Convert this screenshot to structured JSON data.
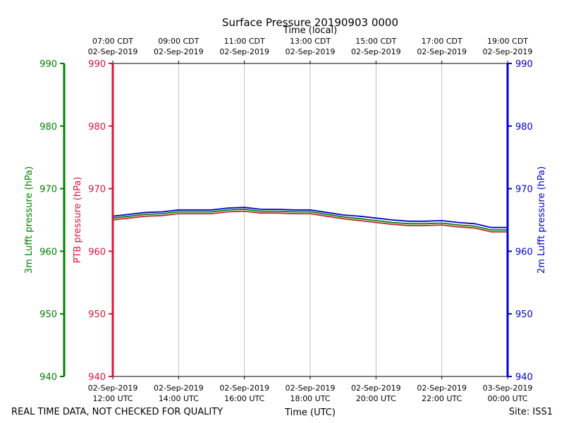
{
  "chart_data": {
    "type": "line",
    "title": "Surface Pressure 20190903 0000",
    "top_axis_title": "Time (local)",
    "xlabel": "Time (UTC)",
    "ylabel_left_outer": "3m Lufft pressure (hPa)",
    "ylabel_left_inner": "PTB pressure (hPa)",
    "ylabel_right": "2m Lufft pressure (hPa)",
    "ylim": [
      940,
      990
    ],
    "yticks": [
      "940",
      "950",
      "960",
      "970",
      "980",
      "990"
    ],
    "xlim_hours_utc": [
      12,
      24
    ],
    "grid": "vertical",
    "top_ticks": [
      {
        "line1": "07:00 CDT",
        "line2": "02-Sep-2019"
      },
      {
        "line1": "09:00 CDT",
        "line2": "02-Sep-2019"
      },
      {
        "line1": "11:00 CDT",
        "line2": "02-Sep-2019"
      },
      {
        "line1": "13:00 CDT",
        "line2": "02-Sep-2019"
      },
      {
        "line1": "15:00 CDT",
        "line2": "02-Sep-2019"
      },
      {
        "line1": "17:00 CDT",
        "line2": "02-Sep-2019"
      },
      {
        "line1": "19:00 CDT",
        "line2": "02-Sep-2019"
      }
    ],
    "bottom_ticks": [
      {
        "line1": "02-Sep-2019",
        "line2": "12:00 UTC"
      },
      {
        "line1": "02-Sep-2019",
        "line2": "14:00 UTC"
      },
      {
        "line1": "02-Sep-2019",
        "line2": "16:00 UTC"
      },
      {
        "line1": "02-Sep-2019",
        "line2": "18:00 UTC"
      },
      {
        "line1": "02-Sep-2019",
        "line2": "20:00 UTC"
      },
      {
        "line1": "02-Sep-2019",
        "line2": "22:00 UTC"
      },
      {
        "line1": "03-Sep-2019",
        "line2": "00:00 UTC"
      }
    ],
    "x": [
      12.0,
      12.5,
      13.0,
      13.5,
      14.0,
      14.5,
      15.0,
      15.5,
      16.0,
      16.5,
      17.0,
      17.5,
      18.0,
      18.5,
      19.0,
      19.5,
      20.0,
      20.5,
      21.0,
      21.5,
      22.0,
      22.5,
      23.0,
      23.5,
      24.0
    ],
    "series": [
      {
        "color": "#0000cc",
        "values": [
          965.6,
          965.9,
          966.2,
          966.3,
          966.6,
          966.6,
          966.6,
          966.9,
          967.0,
          966.7,
          966.7,
          966.6,
          966.6,
          966.2,
          965.8,
          965.6,
          965.3,
          965.0,
          964.8,
          964.8,
          964.9,
          964.6,
          964.4,
          963.8,
          963.8
        ]
      },
      {
        "color": "#008000",
        "values": [
          965.3,
          965.6,
          965.9,
          966.0,
          966.3,
          966.3,
          966.3,
          966.6,
          966.7,
          966.4,
          966.4,
          966.3,
          966.3,
          965.9,
          965.5,
          965.2,
          964.9,
          964.6,
          964.4,
          964.4,
          964.5,
          964.2,
          964.0,
          963.4,
          963.4
        ]
      },
      {
        "color": "#c0282d",
        "values": [
          965.0,
          965.3,
          965.6,
          965.7,
          966.0,
          966.0,
          966.0,
          966.3,
          966.4,
          966.1,
          966.1,
          966.0,
          966.0,
          965.6,
          965.2,
          964.9,
          964.6,
          964.3,
          964.1,
          964.1,
          964.2,
          963.9,
          963.7,
          963.1,
          963.1
        ]
      }
    ]
  },
  "colors": {
    "outer_left_axis": "#008000",
    "inner_left_axis": "#dc143c",
    "right_axis": "#0000cc"
  },
  "footer": {
    "left": "REAL TIME DATA, NOT CHECKED FOR QUALITY",
    "right": "Site: ISS1"
  }
}
